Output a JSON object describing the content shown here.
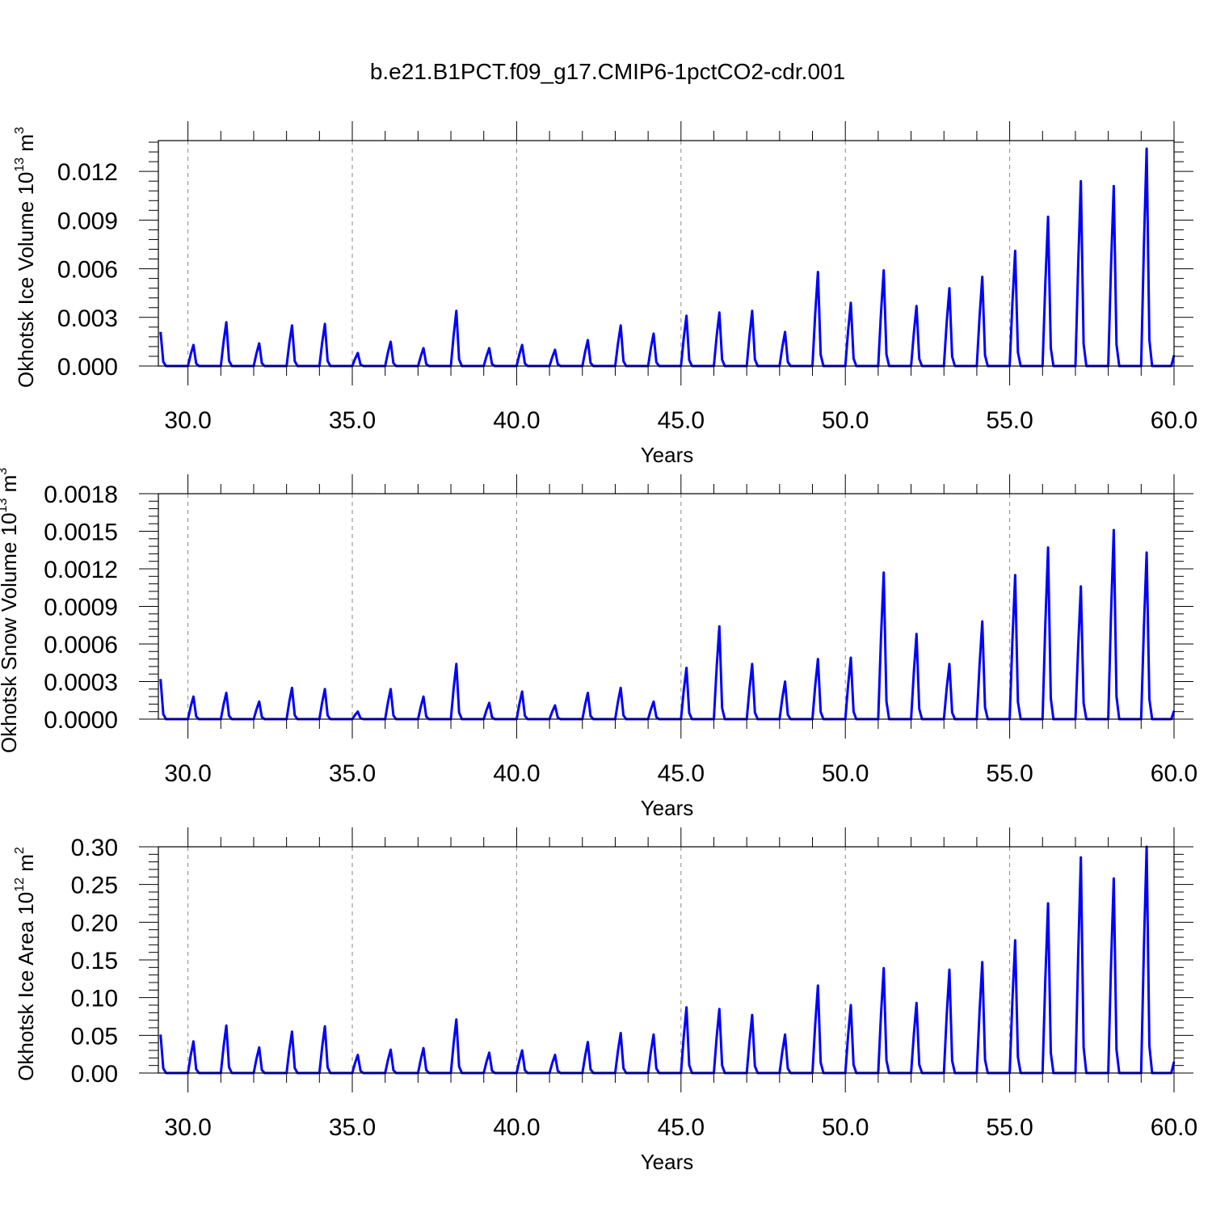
{
  "title": "b.e21.B1PCT.f09_g17.CMIP6-1pctCO2-cdr.001",
  "line_color": "#0000ff",
  "chart_data": [
    {
      "type": "line",
      "xlabel": "Years",
      "ylabel": "Okhotsk Ice Volume 10",
      "ylabel_exp": "13",
      "ylabel_unit": " m",
      "ylabel_unit_exp": "3",
      "xlim": [
        29.1,
        60.0
      ],
      "ylim": [
        0.0,
        0.0139
      ],
      "xticks": [
        "30.0",
        "35.0",
        "40.0",
        "45.0",
        "50.0",
        "55.0",
        "60.0"
      ],
      "yticks": [
        "0.000",
        "0.003",
        "0.006",
        "0.009",
        "0.012"
      ],
      "grid": "vertical dashed",
      "series": [
        {
          "name": "Okhotsk Ice Volume",
          "peaks": [
            0.0021,
            0.0013,
            0.0027,
            0.0014,
            0.0025,
            0.0026,
            0.0008,
            0.0015,
            0.0011,
            0.0034,
            0.0011,
            0.0013,
            0.001,
            0.0016,
            0.0025,
            0.002,
            0.0031,
            0.0033,
            0.0034,
            0.0021,
            0.0058,
            0.0039,
            0.0059,
            0.0037,
            0.0048,
            0.0055,
            0.0071,
            0.0092,
            0.0114,
            0.0111,
            0.0134
          ]
        }
      ]
    },
    {
      "type": "line",
      "xlabel": "Years",
      "ylabel": "Okhotsk Snow Volume 10",
      "ylabel_exp": "13",
      "ylabel_unit": " m",
      "ylabel_unit_exp": "3",
      "xlim": [
        29.1,
        60.0
      ],
      "ylim": [
        0.0,
        0.0018
      ],
      "xticks": [
        "30.0",
        "35.0",
        "40.0",
        "45.0",
        "50.0",
        "55.0",
        "60.0"
      ],
      "yticks": [
        "0.0000",
        "0.0003",
        "0.0006",
        "0.0009",
        "0.0012",
        "0.0015",
        "0.0018"
      ],
      "grid": "vertical dashed",
      "series": [
        {
          "name": "Okhotsk Snow Volume",
          "peaks": [
            0.00032,
            0.00018,
            0.00021,
            0.00014,
            0.00025,
            0.00024,
            6e-05,
            0.00024,
            0.00018,
            0.00044,
            0.00013,
            0.00022,
            0.00011,
            0.00021,
            0.00025,
            0.00014,
            0.00041,
            0.00074,
            0.00044,
            0.0003,
            0.00048,
            0.00049,
            0.00117,
            0.00068,
            0.00044,
            0.00078,
            0.00115,
            0.00137,
            0.00106,
            0.00151,
            0.00133
          ]
        }
      ]
    },
    {
      "type": "line",
      "xlabel": "Years",
      "ylabel": "Okhotsk Ice Area 10",
      "ylabel_exp": "12",
      "ylabel_unit": " m",
      "ylabel_unit_exp": "2",
      "xlim": [
        29.1,
        60.0
      ],
      "ylim": [
        0.0,
        0.3
      ],
      "xticks": [
        "30.0",
        "35.0",
        "40.0",
        "45.0",
        "50.0",
        "55.0",
        "60.0"
      ],
      "yticks": [
        "0.00",
        "0.05",
        "0.10",
        "0.15",
        "0.20",
        "0.25",
        "0.30"
      ],
      "grid": "vertical dashed",
      "series": [
        {
          "name": "Okhotsk Ice Area",
          "peaks": [
            0.051,
            0.042,
            0.063,
            0.034,
            0.055,
            0.062,
            0.024,
            0.031,
            0.033,
            0.071,
            0.027,
            0.03,
            0.024,
            0.041,
            0.053,
            0.051,
            0.087,
            0.085,
            0.077,
            0.051,
            0.116,
            0.09,
            0.139,
            0.093,
            0.137,
            0.147,
            0.176,
            0.225,
            0.286,
            0.258,
            0.3
          ]
        }
      ]
    }
  ]
}
